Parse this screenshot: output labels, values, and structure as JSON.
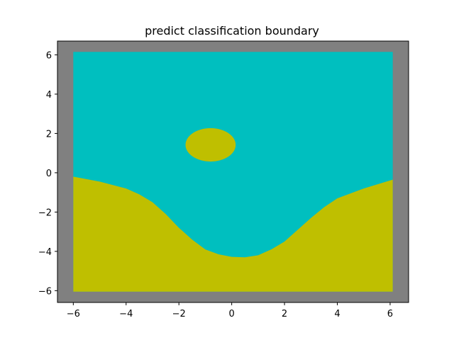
{
  "chart_data": {
    "type": "heatmap",
    "title": "predict classification boundary",
    "xlabel": "",
    "ylabel": "",
    "xlim": [
      -6.6,
      6.7
    ],
    "ylim": [
      -6.6,
      6.7
    ],
    "grid_extent": {
      "x": [
        -6.0,
        6.1
      ],
      "y": [
        -6.05,
        6.15
      ]
    },
    "xticks": [
      -6,
      -4,
      -2,
      0,
      2,
      4,
      6
    ],
    "yticks": [
      -6,
      -4,
      -2,
      0,
      2,
      4,
      6
    ],
    "xtick_labels": [
      "−6",
      "−4",
      "−2",
      "0",
      "2",
      "4",
      "6"
    ],
    "ytick_labels": [
      "−6",
      "−4",
      "−2",
      "0",
      "2",
      "4",
      "6"
    ],
    "grid": false,
    "colors": {
      "axes_background": "#808080",
      "class_upper": "#00bfbf",
      "class_lower": "#bfbf00"
    },
    "regions": {
      "lower_boundary": {
        "x": [
          -6.0,
          -5.0,
          -4.0,
          -3.5,
          -3.0,
          -2.5,
          -2.0,
          -1.5,
          -1.0,
          -0.5,
          0.0,
          0.5,
          1.0,
          1.5,
          2.0,
          2.5,
          3.0,
          3.5,
          4.0,
          5.0,
          6.1
        ],
        "y": [
          -0.2,
          -0.45,
          -0.8,
          -1.1,
          -1.5,
          -2.1,
          -2.8,
          -3.4,
          -3.9,
          -4.15,
          -4.28,
          -4.3,
          -4.2,
          -3.9,
          -3.5,
          -2.9,
          -2.3,
          -1.75,
          -1.3,
          -0.8,
          -0.35
        ]
      },
      "ellipse": {
        "cx": -0.8,
        "cy": 1.42,
        "rx": 0.95,
        "ry": 0.85
      }
    }
  }
}
